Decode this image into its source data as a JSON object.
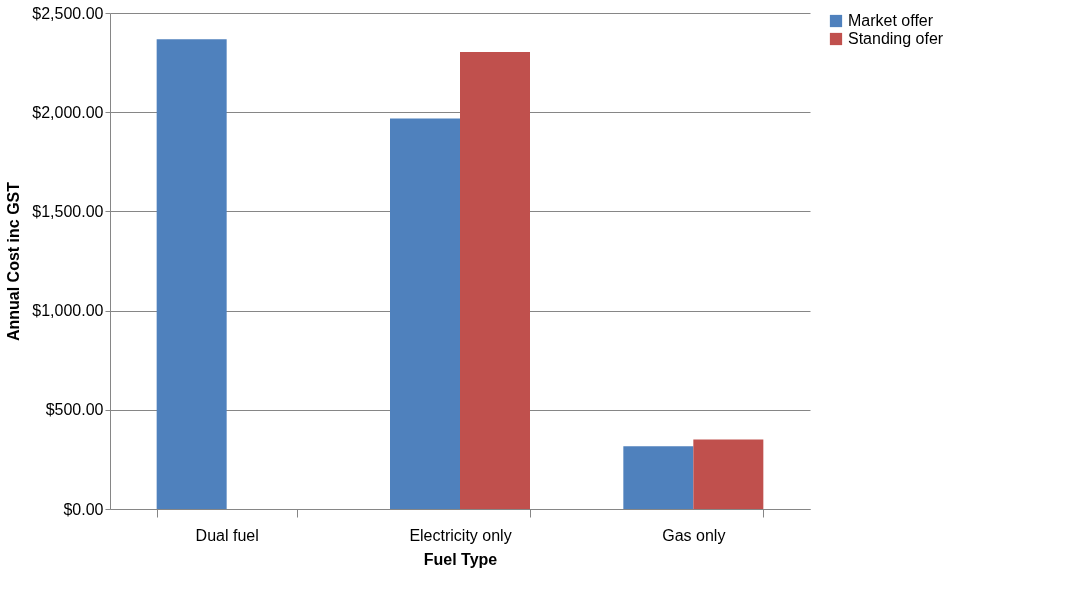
{
  "chart_data": {
    "type": "bar",
    "xlabel": "Fuel Type",
    "ylabel": "Annual Cost inc GST",
    "categories": [
      "Dual fuel",
      "Electricity only",
      "Gas only"
    ],
    "series": [
      {
        "name": "Market offer",
        "color": "#4f81bd",
        "values": [
          2368,
          1968,
          316
        ]
      },
      {
        "name": "Standing ofer",
        "color": "#c0504d",
        "values": [
          null,
          2303,
          350
        ]
      }
    ],
    "ylim": [
      0,
      2500
    ],
    "yticks": [
      {
        "value": 0,
        "label": "$0.00"
      },
      {
        "value": 500,
        "label": "$500.00"
      },
      {
        "value": 1000,
        "label": "$1,000.00"
      },
      {
        "value": 1500,
        "label": "$1,500.00"
      },
      {
        "value": 2000,
        "label": "$2,000.00"
      },
      {
        "value": 2500,
        "label": "$2,500.00"
      }
    ],
    "grid": "y",
    "legend": "right"
  }
}
